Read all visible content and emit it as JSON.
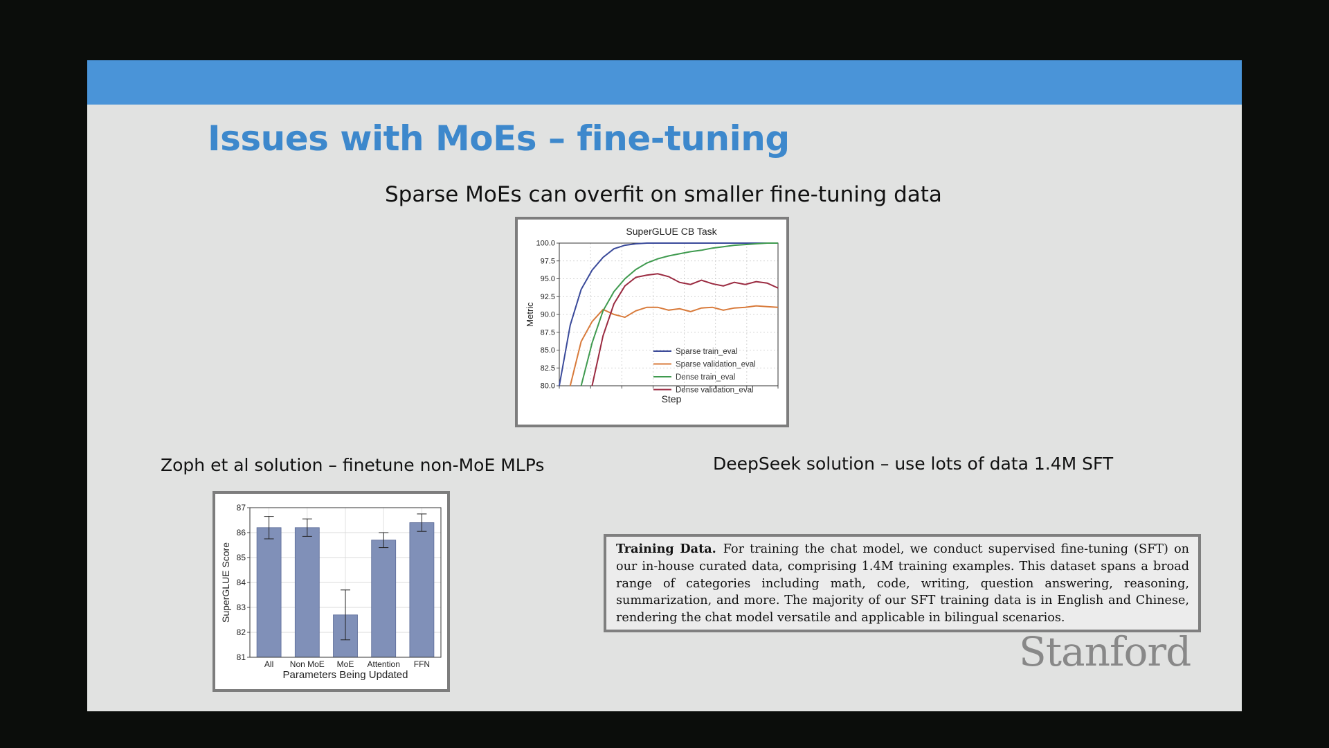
{
  "slide": {
    "title": "Issues with MoEs – fine-tuning",
    "main_caption": "Sparse MoEs can overfit on smaller fine-tuning data",
    "zoph_caption": "Zoph et al solution – finetune non-MoE MLPs",
    "deepseek_caption": "DeepSeek solution – use lots of data 1.4M SFT",
    "training_box": {
      "heading": "Training Data.",
      "body": "For training the chat model, we conduct supervised fine-tuning (SFT) on our in-house curated data, comprising 1.4M training examples. This dataset spans a broad range of categories including math, code, writing, question answering, reasoning, summarization, and more. The majority of our SFT training data is in English and Chinese, rendering the chat model versatile and applicable in bilingual scenarios."
    },
    "logo_text": "Stanford"
  },
  "colors": {
    "top_bar": "#4a94d8",
    "title": "#3d88cc",
    "slide_background": "#e1e2e1",
    "screen_background": "#0b0d0b"
  },
  "chart_data": [
    {
      "type": "line",
      "title": "SuperGLUE CB Task",
      "xlabel": "Step",
      "ylabel": "Metric",
      "ylim": [
        80.0,
        100.0
      ],
      "yticks": [
        "80.0",
        "82.5",
        "85.0",
        "87.5",
        "90.0",
        "92.5",
        "95.0",
        "97.5",
        "100.0"
      ],
      "grid": true,
      "legend": "center-right",
      "x": [
        0,
        1,
        2,
        3,
        4,
        5,
        6,
        7,
        8,
        9,
        10,
        11,
        12,
        13,
        14,
        15,
        16,
        17,
        18,
        19,
        20
      ],
      "series": [
        {
          "name": "Sparse train_eval",
          "color": "#3a4a9a",
          "values": [
            80.0,
            88.5,
            93.5,
            96.2,
            98.0,
            99.2,
            99.7,
            99.9,
            100.0,
            100.0,
            100.0,
            100.0,
            100.0,
            100.0,
            100.0,
            100.0,
            100.0,
            100.0,
            100.0,
            100.0,
            100.0
          ]
        },
        {
          "name": "Sparse validation_eval",
          "color": "#d87a3a",
          "values": [
            null,
            80.0,
            86.2,
            89.0,
            90.7,
            90.0,
            89.6,
            90.5,
            91.0,
            91.0,
            90.6,
            90.8,
            90.4,
            90.9,
            91.0,
            90.6,
            90.9,
            91.0,
            91.2,
            91.1,
            91.0
          ]
        },
        {
          "name": "Dense train_eval",
          "color": "#3f9a4f",
          "values": [
            null,
            null,
            80.0,
            86.0,
            90.5,
            93.2,
            95.0,
            96.3,
            97.2,
            97.8,
            98.2,
            98.5,
            98.8,
            99.0,
            99.3,
            99.5,
            99.7,
            99.8,
            99.9,
            100.0,
            100.0
          ]
        },
        {
          "name": "Dense validation_eval",
          "color": "#9a2a40",
          "values": [
            null,
            null,
            null,
            80.0,
            87.0,
            91.5,
            94.0,
            95.2,
            95.5,
            95.7,
            95.3,
            94.5,
            94.2,
            94.8,
            94.3,
            94.0,
            94.5,
            94.2,
            94.6,
            94.4,
            93.7
          ]
        }
      ]
    },
    {
      "type": "bar",
      "xlabel": "Parameters Being Updated",
      "ylabel": "SuperGLUE Score",
      "ylim": [
        81,
        87
      ],
      "yticks": [
        "81",
        "82",
        "83",
        "84",
        "85",
        "86",
        "87"
      ],
      "grid": true,
      "categories": [
        "All",
        "Non MoE",
        "MoE",
        "Attention",
        "FFN"
      ],
      "values": [
        86.2,
        86.2,
        82.7,
        85.7,
        86.4
      ],
      "error": [
        0.45,
        0.35,
        1.0,
        0.3,
        0.35
      ],
      "color": "#8090b8"
    }
  ]
}
